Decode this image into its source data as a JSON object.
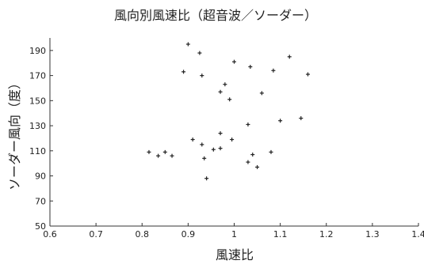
{
  "chart_data": {
    "type": "scatter",
    "title": "風向別風速比（超音波／ソーダー）",
    "xlabel": "風速比",
    "ylabel": "ソーダー風向（度）",
    "xlim": [
      0.6,
      1.4
    ],
    "ylim": [
      50,
      200
    ],
    "xticks": [
      "0.6",
      "0.7",
      "0.8",
      "0.9",
      "1",
      "1.1",
      "1.2",
      "1.3",
      "1.4"
    ],
    "yticks": [
      "50",
      "70",
      "90",
      "110",
      "130",
      "150",
      "170",
      "190"
    ],
    "marker": "plus",
    "points": [
      [
        0.9,
        195
      ],
      [
        0.925,
        188
      ],
      [
        0.89,
        173
      ],
      [
        0.93,
        170
      ],
      [
        1.0,
        181
      ],
      [
        1.035,
        177
      ],
      [
        1.085,
        174
      ],
      [
        1.12,
        185
      ],
      [
        1.16,
        171
      ],
      [
        0.98,
        163
      ],
      [
        0.97,
        157
      ],
      [
        0.99,
        151
      ],
      [
        1.06,
        156
      ],
      [
        1.03,
        131
      ],
      [
        1.1,
        134
      ],
      [
        1.145,
        136
      ],
      [
        0.97,
        124
      ],
      [
        0.91,
        119
      ],
      [
        0.995,
        119
      ],
      [
        0.93,
        115
      ],
      [
        0.955,
        111
      ],
      [
        0.97,
        112
      ],
      [
        0.815,
        109
      ],
      [
        0.835,
        106
      ],
      [
        0.85,
        109
      ],
      [
        0.865,
        106
      ],
      [
        0.935,
        104
      ],
      [
        1.04,
        107
      ],
      [
        1.08,
        109
      ],
      [
        1.03,
        101
      ],
      [
        1.05,
        97
      ],
      [
        0.94,
        88
      ]
    ]
  }
}
